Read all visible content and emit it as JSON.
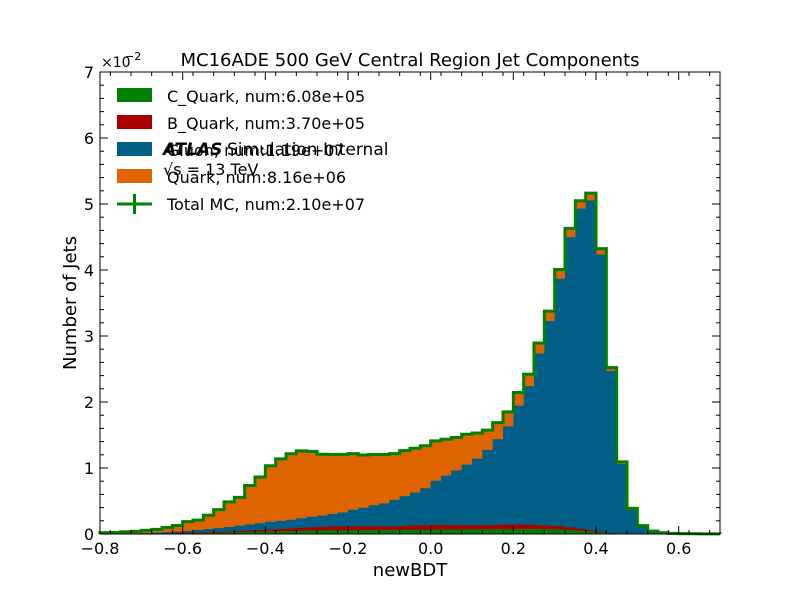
{
  "chart_data": {
    "type": "bar",
    "subtype": "stacked-step-histogram",
    "title": "MC16ADE 500 GeV Central Region Jet Components",
    "xlabel": "newBDT",
    "ylabel": "Number of Jets",
    "y_scale_label": "×10",
    "y_scale_exp": "−2",
    "xlim": [
      -0.8,
      0.7
    ],
    "ylim": [
      0,
      7
    ],
    "xticks": [
      "−0.8",
      "−0.6",
      "−0.4",
      "−0.2",
      "0.0",
      "0.2",
      "0.4",
      "0.6"
    ],
    "xtick_values": [
      -0.8,
      -0.6,
      -0.4,
      -0.2,
      0.0,
      0.2,
      0.4,
      0.6
    ],
    "yticks": [
      "0",
      "1",
      "2",
      "3",
      "4",
      "5",
      "6",
      "7"
    ],
    "ytick_values": [
      0,
      1,
      2,
      3,
      4,
      5,
      6,
      7
    ],
    "bin_edges": [
      -0.8,
      -0.775,
      -0.75,
      -0.725,
      -0.7,
      -0.675,
      -0.65,
      -0.625,
      -0.6,
      -0.575,
      -0.55,
      -0.525,
      -0.5,
      -0.475,
      -0.45,
      -0.425,
      -0.4,
      -0.375,
      -0.35,
      -0.325,
      -0.3,
      -0.275,
      -0.25,
      -0.225,
      -0.2,
      -0.175,
      -0.15,
      -0.125,
      -0.1,
      -0.075,
      -0.05,
      -0.025,
      0.0,
      0.025,
      0.05,
      0.075,
      0.1,
      0.125,
      0.15,
      0.175,
      0.2,
      0.225,
      0.25,
      0.275,
      0.3,
      0.325,
      0.35,
      0.375,
      0.4,
      0.425,
      0.45,
      0.475,
      0.5,
      0.525,
      0.55,
      0.575,
      0.6,
      0.625,
      0.65,
      0.675,
      0.7
    ],
    "series": [
      {
        "name": "C_Quark, num:6.08e+05",
        "color": "#008000",
        "values": [
          0.0,
          0.0,
          0.001,
          0.002,
          0.003,
          0.004,
          0.006,
          0.008,
          0.01,
          0.013,
          0.016,
          0.02,
          0.024,
          0.028,
          0.032,
          0.036,
          0.04,
          0.043,
          0.046,
          0.049,
          0.052,
          0.054,
          0.056,
          0.057,
          0.058,
          0.059,
          0.06,
          0.061,
          0.062,
          0.063,
          0.064,
          0.065,
          0.066,
          0.067,
          0.068,
          0.069,
          0.07,
          0.071,
          0.072,
          0.073,
          0.074,
          0.075,
          0.074,
          0.072,
          0.068,
          0.06,
          0.05,
          0.035,
          0.022,
          0.012,
          0.006,
          0.003,
          0.001,
          0.0,
          0.0,
          0.0,
          0.0,
          0.0,
          0.0,
          0.0
        ]
      },
      {
        "name": "B_Quark, num:3.70e+05",
        "color": "#aa0000",
        "values": [
          0.0,
          0.0,
          0.001,
          0.001,
          0.002,
          0.003,
          0.004,
          0.006,
          0.008,
          0.01,
          0.012,
          0.014,
          0.016,
          0.019,
          0.022,
          0.025,
          0.03,
          0.035,
          0.04,
          0.045,
          0.05,
          0.055,
          0.058,
          0.06,
          0.06,
          0.058,
          0.055,
          0.053,
          0.055,
          0.06,
          0.065,
          0.068,
          0.07,
          0.068,
          0.065,
          0.062,
          0.06,
          0.062,
          0.065,
          0.068,
          0.07,
          0.065,
          0.06,
          0.055,
          0.05,
          0.04,
          0.03,
          0.02,
          0.012,
          0.006,
          0.003,
          0.001,
          0.0,
          0.0,
          0.0,
          0.0,
          0.0,
          0.0,
          0.0,
          0.0
        ]
      },
      {
        "name": "Gluon, num:1.19e+07",
        "color": "#005f87",
        "values": [
          0.002,
          0.003,
          0.005,
          0.007,
          0.01,
          0.014,
          0.018,
          0.024,
          0.03,
          0.038,
          0.046,
          0.056,
          0.066,
          0.078,
          0.09,
          0.102,
          0.115,
          0.12,
          0.13,
          0.145,
          0.16,
          0.17,
          0.19,
          0.21,
          0.25,
          0.28,
          0.32,
          0.35,
          0.4,
          0.45,
          0.5,
          0.56,
          0.67,
          0.75,
          0.83,
          0.92,
          1.01,
          1.14,
          1.3,
          1.49,
          1.8,
          2.1,
          2.6,
          3.1,
          3.75,
          4.4,
          4.85,
          5.0,
          4.2,
          2.45,
          1.05,
          0.36,
          0.11,
          0.036,
          0.013,
          0.005,
          0.002,
          0.001,
          0.0,
          0.0
        ]
      },
      {
        "name": "Quark, num:8.16e+06",
        "color": "#de6400",
        "values": [
          0.018,
          0.02,
          0.028,
          0.03,
          0.04,
          0.05,
          0.07,
          0.09,
          0.14,
          0.15,
          0.21,
          0.28,
          0.38,
          0.43,
          0.59,
          0.7,
          0.85,
          0.94,
          1.0,
          1.02,
          0.99,
          0.93,
          0.9,
          0.88,
          0.85,
          0.8,
          0.77,
          0.74,
          0.7,
          0.69,
          0.67,
          0.645,
          0.605,
          0.55,
          0.5,
          0.46,
          0.39,
          0.3,
          0.25,
          0.22,
          0.2,
          0.18,
          0.16,
          0.15,
          0.14,
          0.13,
          0.12,
          0.11,
          0.09,
          0.052,
          0.034,
          0.025,
          0.016,
          0.008,
          0.005,
          0.005,
          0.004,
          0.003,
          0.002,
          0.001
        ]
      }
    ],
    "total": {
      "name": "Total MC, num:2.10e+07",
      "color": "#008000"
    },
    "legend_order": [
      "C_Quark, num:6.08e+05",
      "B_Quark, num:3.70e+05",
      "Gluon, num:1.19e+07",
      "Quark, num:8.16e+06",
      "Total MC, num:2.10e+07"
    ],
    "legend_position": "top-left",
    "annotation": {
      "atlas": "ATLAS",
      "atlas_text": "Simulation Internal",
      "energy": "√s = 13 TeV"
    },
    "grid": false
  }
}
